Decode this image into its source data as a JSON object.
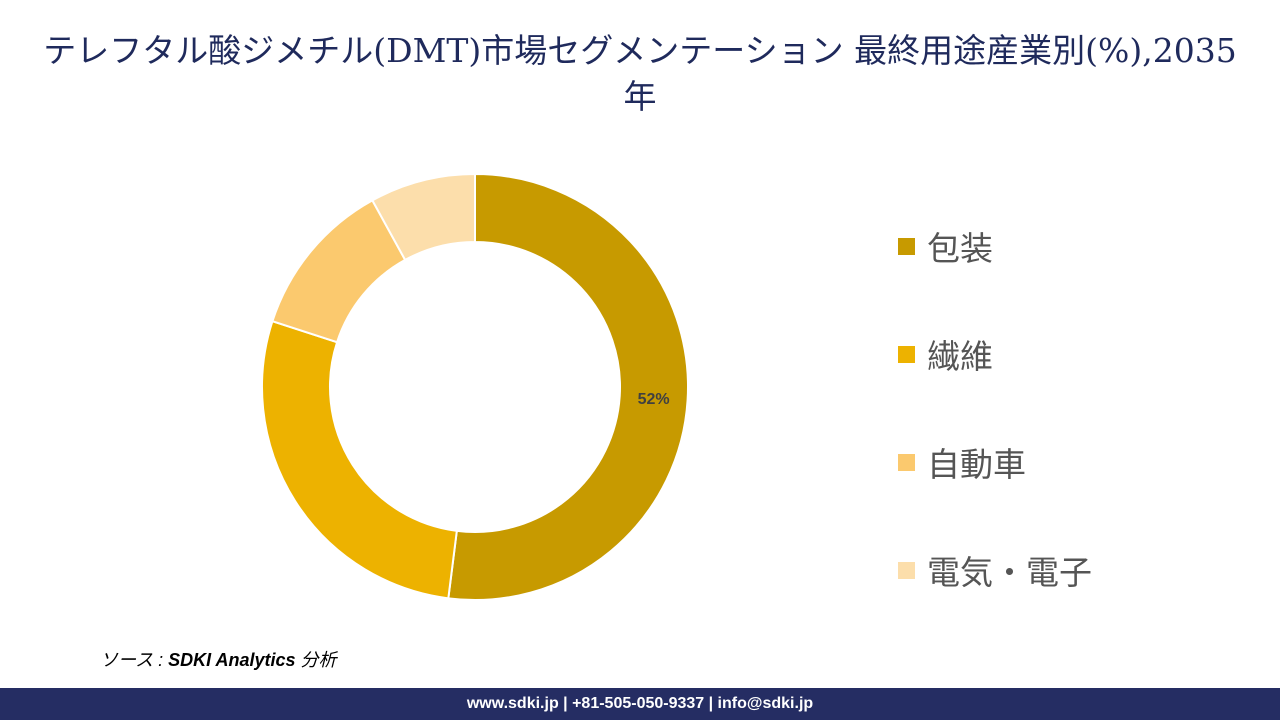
{
  "chart_data": {
    "type": "pie",
    "donut": true,
    "title": "テレフタル酸ジメチル(DMT)市場セグメンテーション 最終用途産業別(%),2035年",
    "categories": [
      "包装",
      "繊維",
      "自動車",
      "電気・電子"
    ],
    "values": [
      52,
      28,
      12,
      8
    ],
    "colors": [
      "#C79A00",
      "#EDB200",
      "#FBC96E",
      "#FCDEAB"
    ],
    "data_labels": [
      "52%",
      "",
      "",
      ""
    ],
    "legend_position": "right"
  },
  "source": {
    "prefix": "ソース : ",
    "name": "SDKI Analytics",
    "suffix": " 分析"
  },
  "footer": {
    "text": "www.sdki.jp | +81-505-050-9337 | info@sdki.jp"
  }
}
